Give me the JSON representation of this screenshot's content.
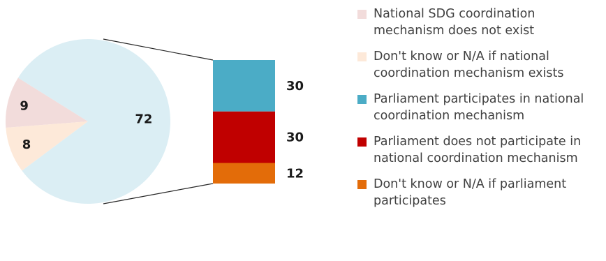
{
  "chart_data": {
    "type": "pie",
    "pie": {
      "slices": [
        {
          "label": "National SDG coordination mechanism does not exist",
          "value": 9,
          "color": "#f2dcdb"
        },
        {
          "label": "Don't know or N/A if national coordination mechanism exists",
          "value": 8,
          "color": "#fde9d9"
        },
        {
          "label": "",
          "value": 72,
          "color": "#dbeef4"
        }
      ]
    },
    "bar_of_pie": {
      "segments": [
        {
          "label": "Parliament participates in national coordination mechanism",
          "value": 30,
          "color": "#4bacc6"
        },
        {
          "label": "Parliament does not participate in national coordination mechanism",
          "value": 30,
          "color": "#c00000"
        },
        {
          "label": "Don't know or N/A if parliament participates",
          "value": 12,
          "color": "#e36c09"
        }
      ]
    },
    "legend": {
      "position": "right",
      "items": [
        {
          "label": "National SDG coordination mechanism does not exist",
          "color": "#f2dcdb"
        },
        {
          "label": "Don't know or N/A if national coordination mechanism exists",
          "color": "#fde9d9"
        },
        {
          "label": "Parliament participates in national coordination mechanism",
          "color": "#4bacc6"
        },
        {
          "label": "Parliament does not participate in national coordination mechanism",
          "color": "#c00000"
        },
        {
          "label": "Don't know or N/A if parliament participates",
          "color": "#e36c09"
        }
      ]
    }
  }
}
